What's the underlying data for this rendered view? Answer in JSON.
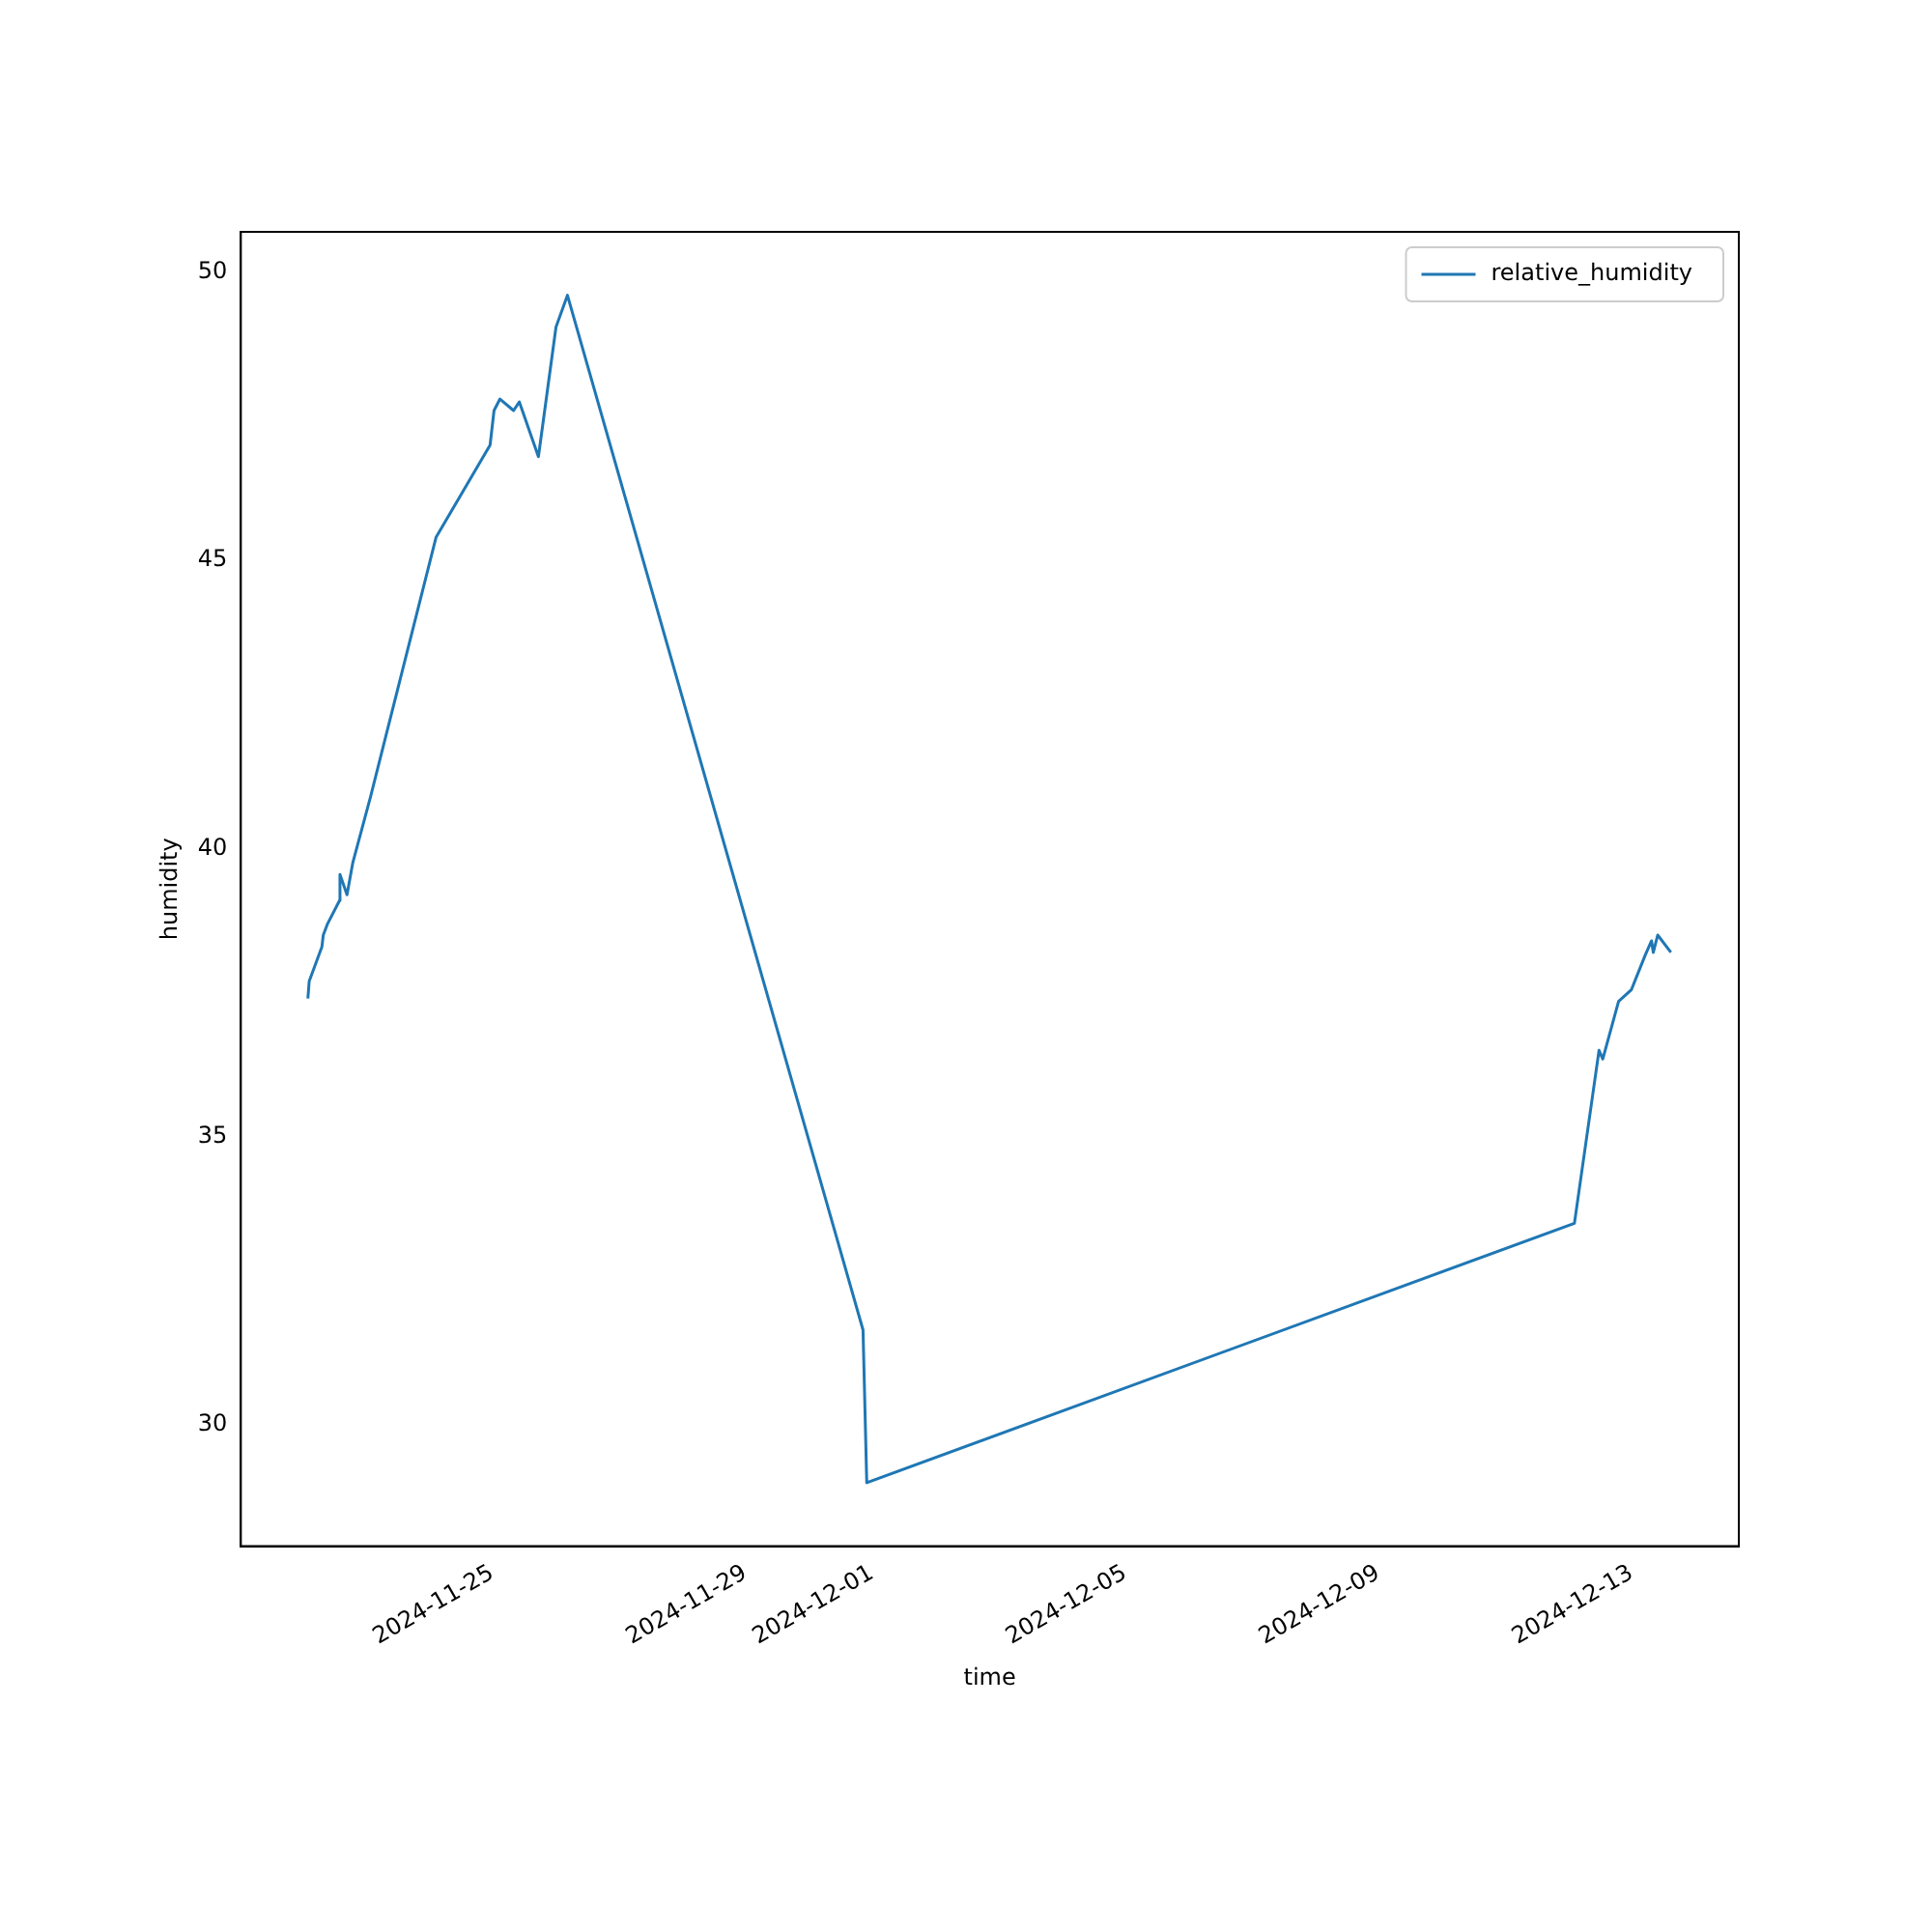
{
  "chart_data": {
    "type": "line",
    "xlabel": "time",
    "ylabel": "humidity",
    "x": [
      "2024-11-22T02:10",
      "2024-11-22T02:40",
      "2024-11-22T07:30",
      "2024-11-22T08:00",
      "2024-11-22T09:40",
      "2024-11-22T14:10",
      "2024-11-22T14:20",
      "2024-11-22T17:00",
      "2024-11-22T19:10",
      "2024-11-23T01:55",
      "2024-11-24T02:45",
      "2024-11-24T23:15",
      "2024-11-25T00:45",
      "2024-11-25T03:00",
      "2024-11-25T08:10",
      "2024-11-25T10:20",
      "2024-11-25T17:35",
      "2024-11-26T00:15",
      "2024-11-26T04:35",
      "2024-11-30T20:40",
      "2024-11-30T22:05",
      "2024-12-12T02:25",
      "2024-12-12T11:45",
      "2024-12-12T13:10",
      "2024-12-12T19:10",
      "2024-12-13T00:00",
      "2024-12-13T05:15",
      "2024-12-13T07:40",
      "2024-12-13T08:20",
      "2024-12-13T10:00",
      "2024-12-13T15:00"
    ],
    "series": [
      {
        "name": "relative_humidity",
        "color": "#1f77b4",
        "values": [
          37.4,
          37.7,
          38.3,
          38.5,
          38.7,
          39.1,
          39.55,
          39.2,
          39.75,
          40.9,
          45.4,
          47.0,
          47.6,
          47.8,
          47.6,
          47.75,
          46.8,
          49.05,
          49.6,
          31.65,
          29.0,
          33.5,
          36.5,
          36.35,
          37.35,
          37.55,
          38.15,
          38.4,
          38.2,
          38.5,
          38.2
        ]
      }
    ],
    "xlim": [
      "2024-11-21T00:45",
      "2024-12-14T16:45"
    ],
    "xticks": [
      "2024-11-25",
      "2024-11-29",
      "2024-12-01",
      "2024-12-05",
      "2024-12-09",
      "2024-12-13"
    ],
    "ylim": [
      27.9,
      50.7
    ],
    "yticks": [
      30,
      35,
      40,
      45,
      50
    ],
    "legend": "top right",
    "marker": "none",
    "line_style": "solid"
  }
}
